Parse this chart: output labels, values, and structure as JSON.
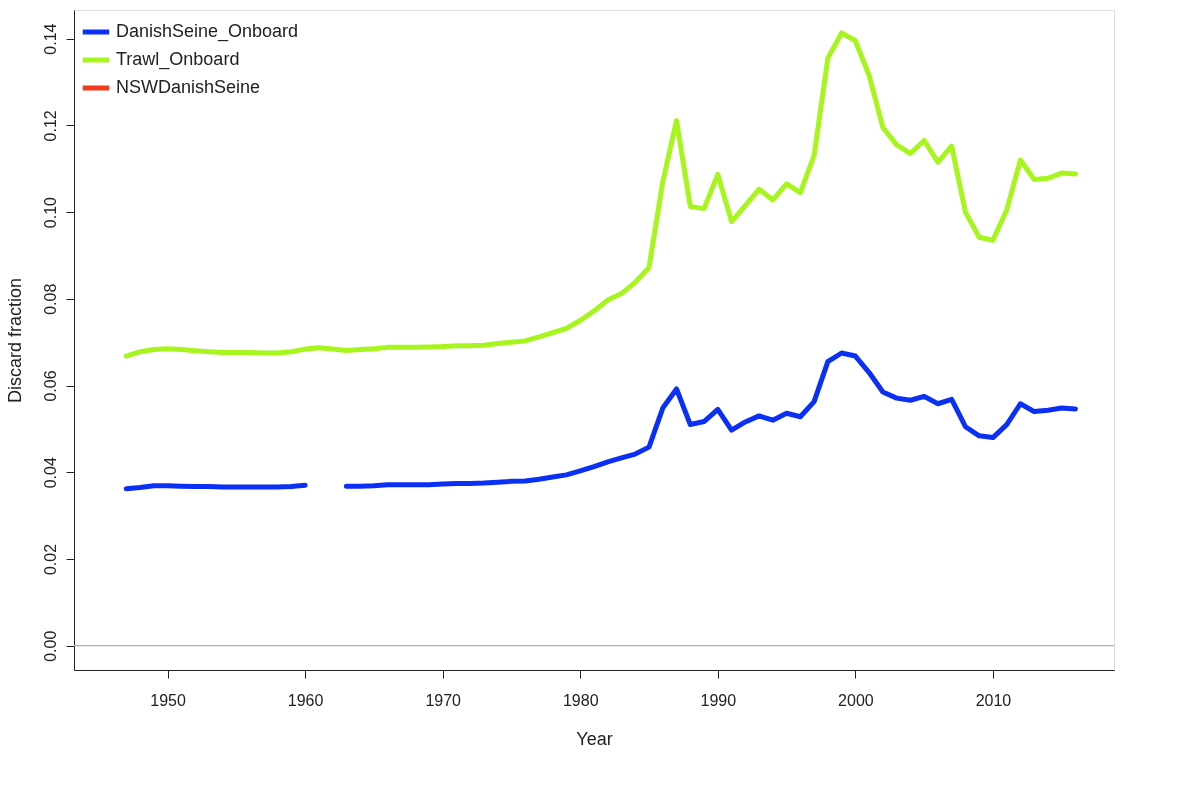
{
  "chart_data": {
    "type": "line",
    "xlabel": "Year",
    "ylabel": "Discard fraction",
    "x": [
      1947,
      1948,
      1949,
      1950,
      1951,
      1952,
      1953,
      1954,
      1955,
      1956,
      1957,
      1958,
      1959,
      1960,
      1961,
      1962,
      1963,
      1964,
      1965,
      1966,
      1967,
      1968,
      1969,
      1970,
      1971,
      1972,
      1973,
      1974,
      1975,
      1976,
      1977,
      1978,
      1979,
      1980,
      1981,
      1982,
      1983,
      1984,
      1985,
      1986,
      1987,
      1988,
      1989,
      1990,
      1991,
      1992,
      1993,
      1994,
      1995,
      1996,
      1997,
      1998,
      1999,
      2000,
      2001,
      2002,
      2003,
      2004,
      2005,
      2006,
      2007,
      2008,
      2009,
      2010,
      2011,
      2012,
      2013,
      2014,
      2015,
      2016
    ],
    "series": [
      {
        "name": "DanishSeine_Onboard",
        "color": "#0a2ff5",
        "values": [
          0.0362,
          0.0365,
          0.0369,
          0.0369,
          0.0368,
          0.0367,
          0.0367,
          0.0366,
          0.0366,
          0.0366,
          0.0366,
          0.0366,
          0.0367,
          0.037,
          null,
          null,
          0.0368,
          0.0368,
          0.0369,
          0.0371,
          0.0371,
          0.0371,
          0.0371,
          0.0373,
          0.0374,
          0.0374,
          0.0375,
          0.0377,
          0.0379,
          0.038,
          0.0384,
          0.0389,
          0.0394,
          0.0403,
          0.0413,
          0.0424,
          0.0433,
          0.0442,
          0.0458,
          0.0548,
          0.0592,
          0.051,
          0.0517,
          0.0545,
          0.0497,
          0.0516,
          0.053,
          0.052,
          0.0536,
          0.0528,
          0.0563,
          0.0655,
          0.0675,
          0.0668,
          0.063,
          0.0585,
          0.0571,
          0.0566,
          0.0575,
          0.0558,
          0.0568,
          0.0505,
          0.0484,
          0.048,
          0.051,
          0.0558,
          0.054,
          0.0543,
          0.0548,
          0.0546
        ]
      },
      {
        "name": "Trawl_Onboard",
        "color": "#a6f51c",
        "values": [
          0.0668,
          0.0678,
          0.0683,
          0.0685,
          0.0683,
          0.068,
          0.0678,
          0.0676,
          0.0676,
          0.0676,
          0.0675,
          0.0675,
          0.0678,
          0.0684,
          0.0687,
          0.0684,
          0.0681,
          0.0683,
          0.0685,
          0.0688,
          0.0688,
          0.0688,
          0.0689,
          0.069,
          0.0692,
          0.0692,
          0.0693,
          0.0697,
          0.07,
          0.0703,
          0.0712,
          0.0722,
          0.0732,
          0.075,
          0.0772,
          0.0797,
          0.0812,
          0.0838,
          0.0872,
          0.107,
          0.1211,
          0.1013,
          0.1008,
          0.1087,
          0.0978,
          0.1015,
          0.1053,
          0.1028,
          0.1065,
          0.1045,
          0.113,
          0.1355,
          0.1413,
          0.1395,
          0.1315,
          0.1195,
          0.1155,
          0.1135,
          0.1165,
          0.1115,
          0.1152,
          0.1,
          0.0942,
          0.0935,
          0.1005,
          0.112,
          0.1075,
          0.1078,
          0.109,
          0.1088
        ]
      },
      {
        "name": "NSWDanishSeine",
        "color": "#f23a1a",
        "values": [
          null,
          null,
          null,
          null,
          null,
          null,
          null,
          null,
          null,
          null,
          null,
          null,
          null,
          null,
          null,
          null,
          null,
          null,
          null,
          null,
          null,
          null,
          null,
          null,
          null,
          null,
          null,
          null,
          null,
          null,
          null,
          null,
          null,
          null,
          null,
          null,
          null,
          null,
          null,
          null,
          null,
          null,
          null,
          null,
          null,
          null,
          null,
          null,
          null,
          null,
          null,
          null,
          null,
          null,
          null,
          null,
          null,
          null,
          null,
          null,
          null,
          null,
          null,
          null,
          null,
          null,
          null,
          null,
          null,
          null
        ]
      }
    ],
    "xlim": [
      1943.2,
      2018.8
    ],
    "xticks": [
      1950,
      1960,
      1970,
      1980,
      1990,
      2000,
      2010
    ],
    "ylim": [
      -0.0056,
      0.1466
    ],
    "yticks": [
      {
        "value": 0,
        "label": "0.00"
      },
      0.02,
      0.04,
      0.06,
      0.08,
      {
        "value": 0.1,
        "label": "0.10"
      },
      0.12,
      0.14
    ],
    "ref_lines": [
      {
        "axis": "y",
        "value": 0,
        "color": "#b0b0b0"
      }
    ],
    "legend": "top left",
    "grid": false,
    "marker": "none",
    "line_style": "solid"
  }
}
